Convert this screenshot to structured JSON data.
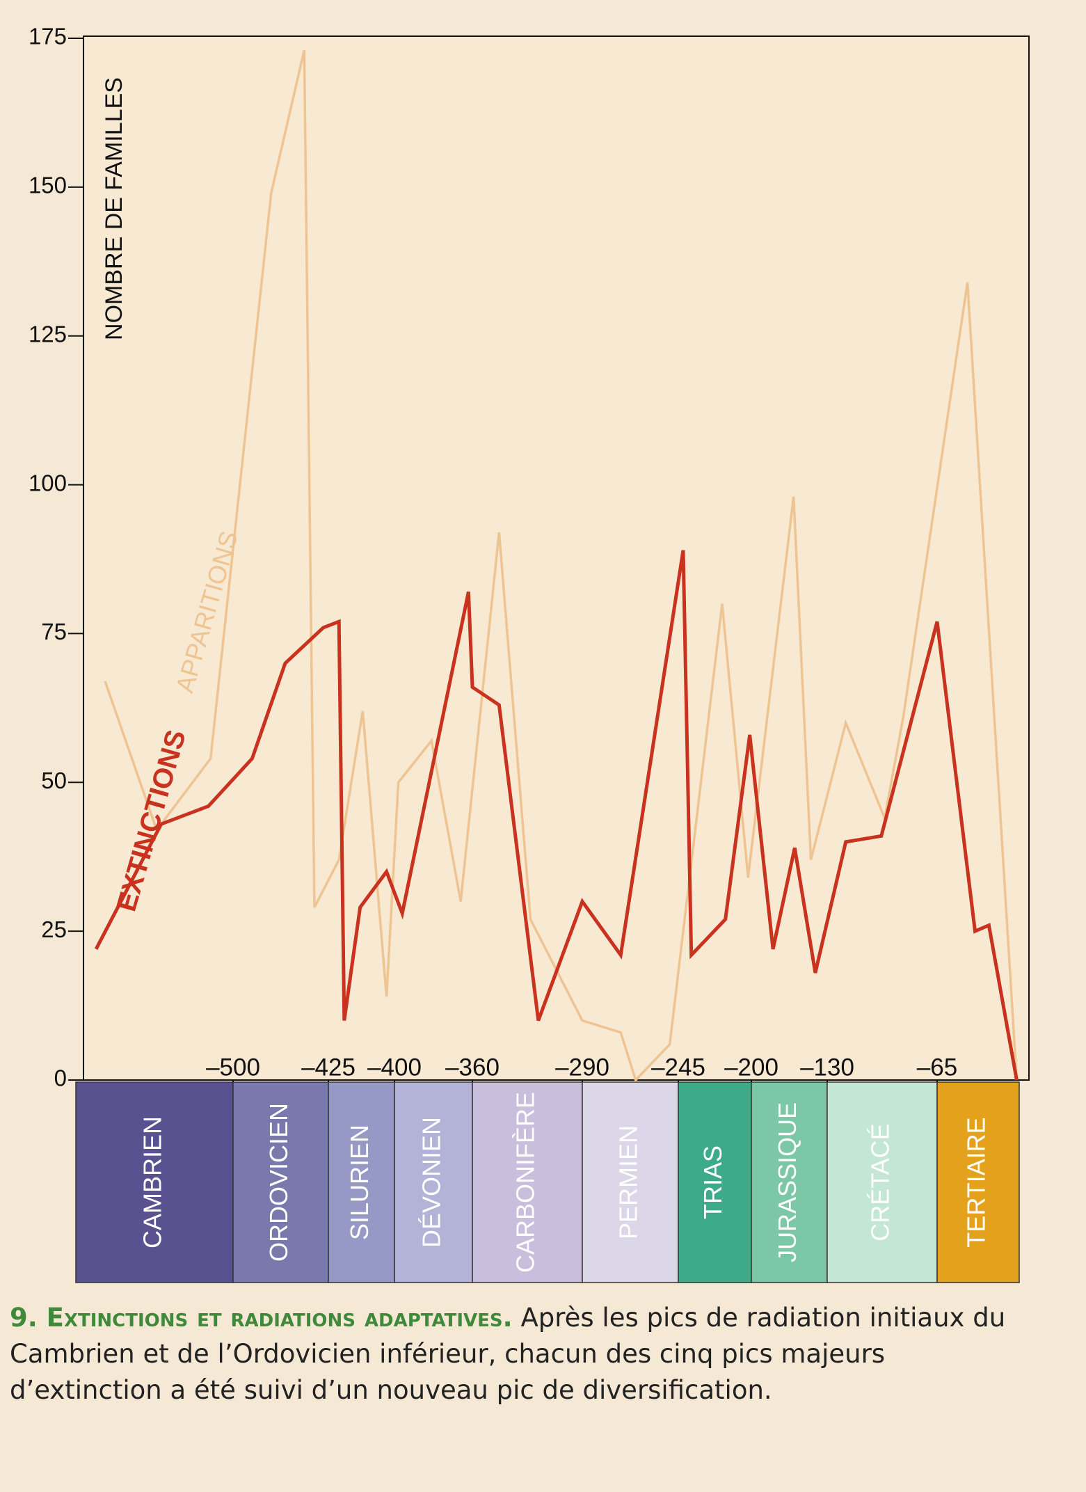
{
  "chart_data": {
    "type": "line",
    "y_label": "NOMBRE DE FAMILLES",
    "xlim": [
      -570,
      0
    ],
    "ylim": [
      0,
      175
    ],
    "yticks": [
      0,
      25,
      50,
      75,
      100,
      125,
      150,
      175
    ],
    "xticks": [
      {
        "value": -500,
        "label": "–500"
      },
      {
        "value": -425,
        "label": "–425"
      },
      {
        "value": -400,
        "label": "–400"
      },
      {
        "value": -360,
        "label": "–360"
      },
      {
        "value": -290,
        "label": "–290"
      },
      {
        "value": -245,
        "label": "–245"
      },
      {
        "value": -200,
        "label": "–200"
      },
      {
        "value": -130,
        "label": "–130"
      },
      {
        "value": -65,
        "label": "–65"
      }
    ],
    "periods": [
      "CAMBRIEN",
      "ORDOVICIEN",
      "SILURIEN",
      "DÉVONIEN",
      "CARBONIFÈRE",
      "PERMIEN",
      "TRIAS",
      "JURASSIQUE",
      "CRÉTACÉ",
      "TERTIAIRE"
    ],
    "period_colors": [
      "#5a5290",
      "#7a79ad",
      "#9698c6",
      "#b2b3d6",
      "#c9bedb",
      "#dcd6e9",
      "#3dab88",
      "#7cc8a6",
      "#c4e6d4",
      "#e4a11c"
    ],
    "series": [
      {
        "name": "APPARITIONS",
        "color": "#eec493",
        "x": [
          -557,
          -534,
          -510,
          -470,
          -444,
          -436,
          -421,
          -412,
          -403,
          -398,
          -381,
          -366,
          -343,
          -323,
          -290,
          -272,
          -265,
          -249,
          -218,
          -202,
          -161,
          -145,
          -119,
          -96,
          -85,
          -41,
          -2
        ],
        "values": [
          67,
          42,
          54,
          149,
          173,
          29,
          37,
          62,
          14,
          50,
          57,
          30,
          92,
          27,
          10,
          8,
          0,
          6,
          80,
          34,
          98,
          37,
          60,
          44,
          61,
          134,
          0
        ]
      },
      {
        "name": "EXTINCTIONS",
        "color": "#c8321e",
        "x": [
          -561,
          -532,
          -511,
          -485,
          -459,
          -429,
          -421,
          -419,
          -413,
          -403,
          -396,
          -362,
          -360,
          -343,
          -318,
          -290,
          -272,
          -242,
          -237,
          -216,
          -201,
          -180,
          -160,
          -141,
          -119,
          -98,
          -65,
          -35,
          -24,
          -2
        ],
        "values": [
          22,
          43,
          46,
          54,
          70,
          76,
          77,
          10,
          29,
          35,
          28,
          82,
          66,
          63,
          10,
          30,
          21,
          89,
          21,
          27,
          58,
          22,
          39,
          18,
          40,
          41,
          77,
          25,
          26,
          0
        ]
      }
    ],
    "caption": {
      "label": "9. Extinctions et radiations adaptatives.",
      "text": "Après les pics de radiation initiaux du Cambrien et de l’Ordovicien inférieur, chacun des cinq pics majeurs d’extinction a été suivi d’un nouveau pic de diversification."
    }
  }
}
